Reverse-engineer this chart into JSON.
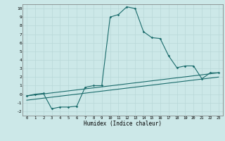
{
  "title": "",
  "xlabel": "Humidex (Indice chaleur)",
  "xlim": [
    -0.5,
    23.5
  ],
  "ylim": [
    -2.5,
    10.5
  ],
  "xticks": [
    0,
    1,
    2,
    3,
    4,
    5,
    6,
    7,
    8,
    9,
    10,
    11,
    12,
    13,
    14,
    15,
    16,
    17,
    18,
    19,
    20,
    21,
    22,
    23
  ],
  "yticks": [
    -2,
    -1,
    0,
    1,
    2,
    3,
    4,
    5,
    6,
    7,
    8,
    9,
    10
  ],
  "bg_color": "#cce8e8",
  "grid_color": "#b8d8d8",
  "line_color": "#1a6b6b",
  "line1_x": [
    0,
    1,
    2,
    3,
    4,
    5,
    6,
    7,
    8,
    9,
    10,
    11,
    12,
    13,
    14,
    15,
    16,
    17,
    18,
    19,
    20,
    21,
    22,
    23
  ],
  "line1_y": [
    -0.2,
    0.0,
    0.1,
    -1.7,
    -1.5,
    -1.5,
    -1.4,
    0.8,
    1.0,
    1.0,
    9.0,
    9.3,
    10.2,
    10.0,
    7.3,
    6.6,
    6.5,
    4.5,
    3.1,
    3.3,
    3.3,
    1.8,
    2.5,
    2.5
  ],
  "line2_x": [
    0,
    23
  ],
  "line2_y": [
    -0.2,
    2.5
  ],
  "line3_x": [
    0,
    23
  ],
  "line3_y": [
    -0.7,
    2.0
  ]
}
